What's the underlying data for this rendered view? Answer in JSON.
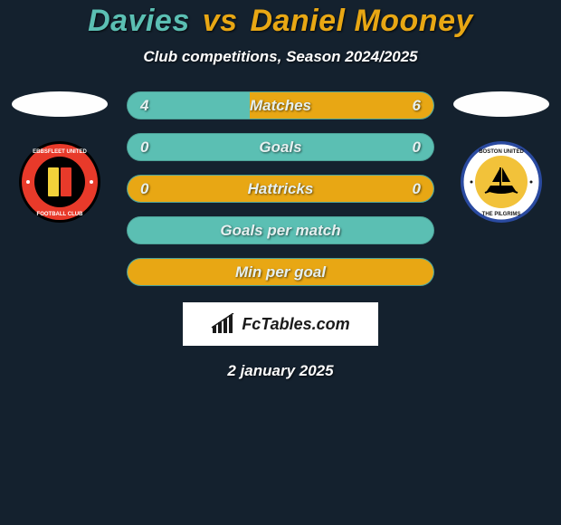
{
  "colors": {
    "background": "#14212e",
    "player1": "#5bbfb3",
    "player2": "#e8a714",
    "white": "#fefefe",
    "logo_bg": "#ffffff",
    "logo_text": "#1a1a1a"
  },
  "title": {
    "player1": "Davies",
    "vs": "vs",
    "player2": "Daniel Mooney",
    "fontsize": 34
  },
  "subtitle": "Club competitions, Season 2024/2025",
  "team1": {
    "name": "Ebbsfleet United",
    "badge_outer": "#000000",
    "badge_ring": "#e83a2a",
    "badge_inner": "#000000",
    "badge_strip": "#f2d23a"
  },
  "team2": {
    "name": "Boston United",
    "badge_outer": "#2a4aa0",
    "badge_ring": "#ffffff",
    "badge_inner": "#f2c23a",
    "badge_ship": "#000000"
  },
  "bars": [
    {
      "label": "Matches",
      "left_val": "4",
      "right_val": "6",
      "left_pct": 40,
      "right_pct": 60,
      "show_vals": true
    },
    {
      "label": "Goals",
      "left_val": "0",
      "right_val": "0",
      "left_pct": 100,
      "right_pct": 0,
      "show_vals": true
    },
    {
      "label": "Hattricks",
      "left_val": "0",
      "right_val": "0",
      "left_pct": 0,
      "right_pct": 100,
      "show_vals": true
    },
    {
      "label": "Goals per match",
      "left_val": "",
      "right_val": "",
      "left_pct": 100,
      "right_pct": 0,
      "show_vals": false
    },
    {
      "label": "Min per goal",
      "left_val": "",
      "right_val": "",
      "left_pct": 0,
      "right_pct": 100,
      "show_vals": false
    }
  ],
  "bar_style": {
    "height": 31,
    "radius": 16,
    "label_fontsize": 17
  },
  "logo": {
    "text": "FcTables.com"
  },
  "date": "2 january 2025"
}
